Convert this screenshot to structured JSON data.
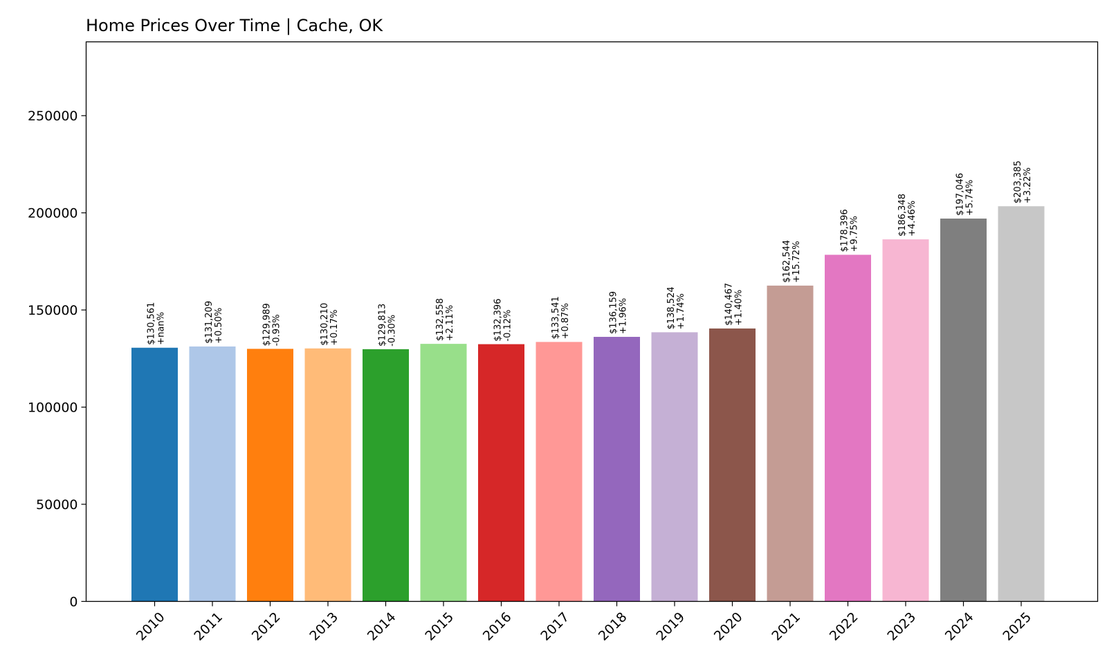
{
  "chart_data": {
    "type": "bar",
    "title": "Home Prices Over Time | Cache, OK",
    "xlabel": "",
    "ylabel": "",
    "ylim": [
      0,
      288000
    ],
    "yticks": [
      0,
      50000,
      100000,
      150000,
      200000,
      250000
    ],
    "ytick_labels": [
      "0",
      "50000",
      "100000",
      "150000",
      "200000",
      "250000"
    ],
    "grid": false,
    "categories": [
      "2010",
      "2011",
      "2012",
      "2013",
      "2014",
      "2015",
      "2016",
      "2017",
      "2018",
      "2019",
      "2020",
      "2021",
      "2022",
      "2023",
      "2024",
      "2025"
    ],
    "values": [
      130561,
      131209,
      129989,
      130210,
      129813,
      132558,
      132396,
      133541,
      136159,
      138524,
      140467,
      162544,
      178396,
      186348,
      197046,
      203385
    ],
    "value_labels": [
      "$130,561",
      "$131,209",
      "$129,989",
      "$130,210",
      "$129,813",
      "$132,558",
      "$132,396",
      "$133,541",
      "$136,159",
      "$138,524",
      "$140,467",
      "$162,544",
      "$178,396",
      "$186,348",
      "$197,046",
      "$203,385"
    ],
    "change_labels": [
      "+nan%",
      "+0.50%",
      "-0.93%",
      "+0.17%",
      "-0.30%",
      "+2.11%",
      "-0.12%",
      "+0.87%",
      "+1.96%",
      "+1.74%",
      "+1.40%",
      "+15.72%",
      "+9.75%",
      "+4.46%",
      "+5.74%",
      "+3.22%"
    ],
    "colors": [
      "#1f77b4",
      "#aec7e8",
      "#ff7f0e",
      "#ffbb78",
      "#2ca02c",
      "#98df8a",
      "#d62728",
      "#ff9896",
      "#9467bd",
      "#c5b0d5",
      "#8c564b",
      "#c49c94",
      "#e377c2",
      "#f7b6d2",
      "#7f7f7f",
      "#c7c7c7"
    ]
  }
}
